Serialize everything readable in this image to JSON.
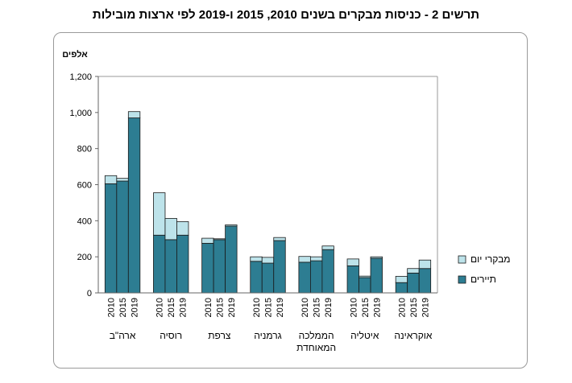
{
  "chart_data": {
    "type": "bar",
    "stacked": true,
    "title": "תרשים 2 - כניסות מבקרים בשנים 2010, 2015 ו-2019 לפי ארצות מובילות",
    "ylabel": "אלפים",
    "ylim": [
      0,
      1200
    ],
    "yticks": [
      "0",
      "200",
      "400",
      "600",
      "800",
      "1,000",
      "1,200"
    ],
    "grid": false,
    "legend_position": "right",
    "groups": [
      {
        "label": [
          "ארה\"ב"
        ],
        "years": [
          "2010",
          "2015",
          "2019"
        ]
      },
      {
        "label": [
          "רוסיה"
        ],
        "years": [
          "2010",
          "2015",
          "2019"
        ]
      },
      {
        "label": [
          "צרפת"
        ],
        "years": [
          "2010",
          "2015",
          "2019"
        ]
      },
      {
        "label": [
          "גרמניה"
        ],
        "years": [
          "2010",
          "2015",
          "2019"
        ]
      },
      {
        "label": [
          "הממלכה",
          "המאוחדת"
        ],
        "years": [
          "2010",
          "2015",
          "2019"
        ]
      },
      {
        "label": [
          "איטליה"
        ],
        "years": [
          "2010",
          "2015",
          "2019"
        ]
      },
      {
        "label": [
          "אוקראינה"
        ],
        "years": [
          "2010",
          "2015",
          "2019"
        ]
      }
    ],
    "series": [
      {
        "name": "תיירים",
        "color": "#2d7d92",
        "values": [
          [
            605,
            620,
            970
          ],
          [
            320,
            295,
            320
          ],
          [
            275,
            295,
            370
          ],
          [
            175,
            165,
            290
          ],
          [
            170,
            178,
            240
          ],
          [
            150,
            85,
            192
          ],
          [
            57,
            110,
            135
          ]
        ]
      },
      {
        "name": "מבקרי יום",
        "color": "#bde3ea",
        "values": [
          [
            45,
            15,
            35
          ],
          [
            235,
            118,
            75
          ],
          [
            28,
            5,
            7
          ],
          [
            25,
            32,
            17
          ],
          [
            32,
            22,
            20
          ],
          [
            38,
            8,
            8
          ],
          [
            35,
            25,
            47
          ]
        ]
      }
    ]
  }
}
